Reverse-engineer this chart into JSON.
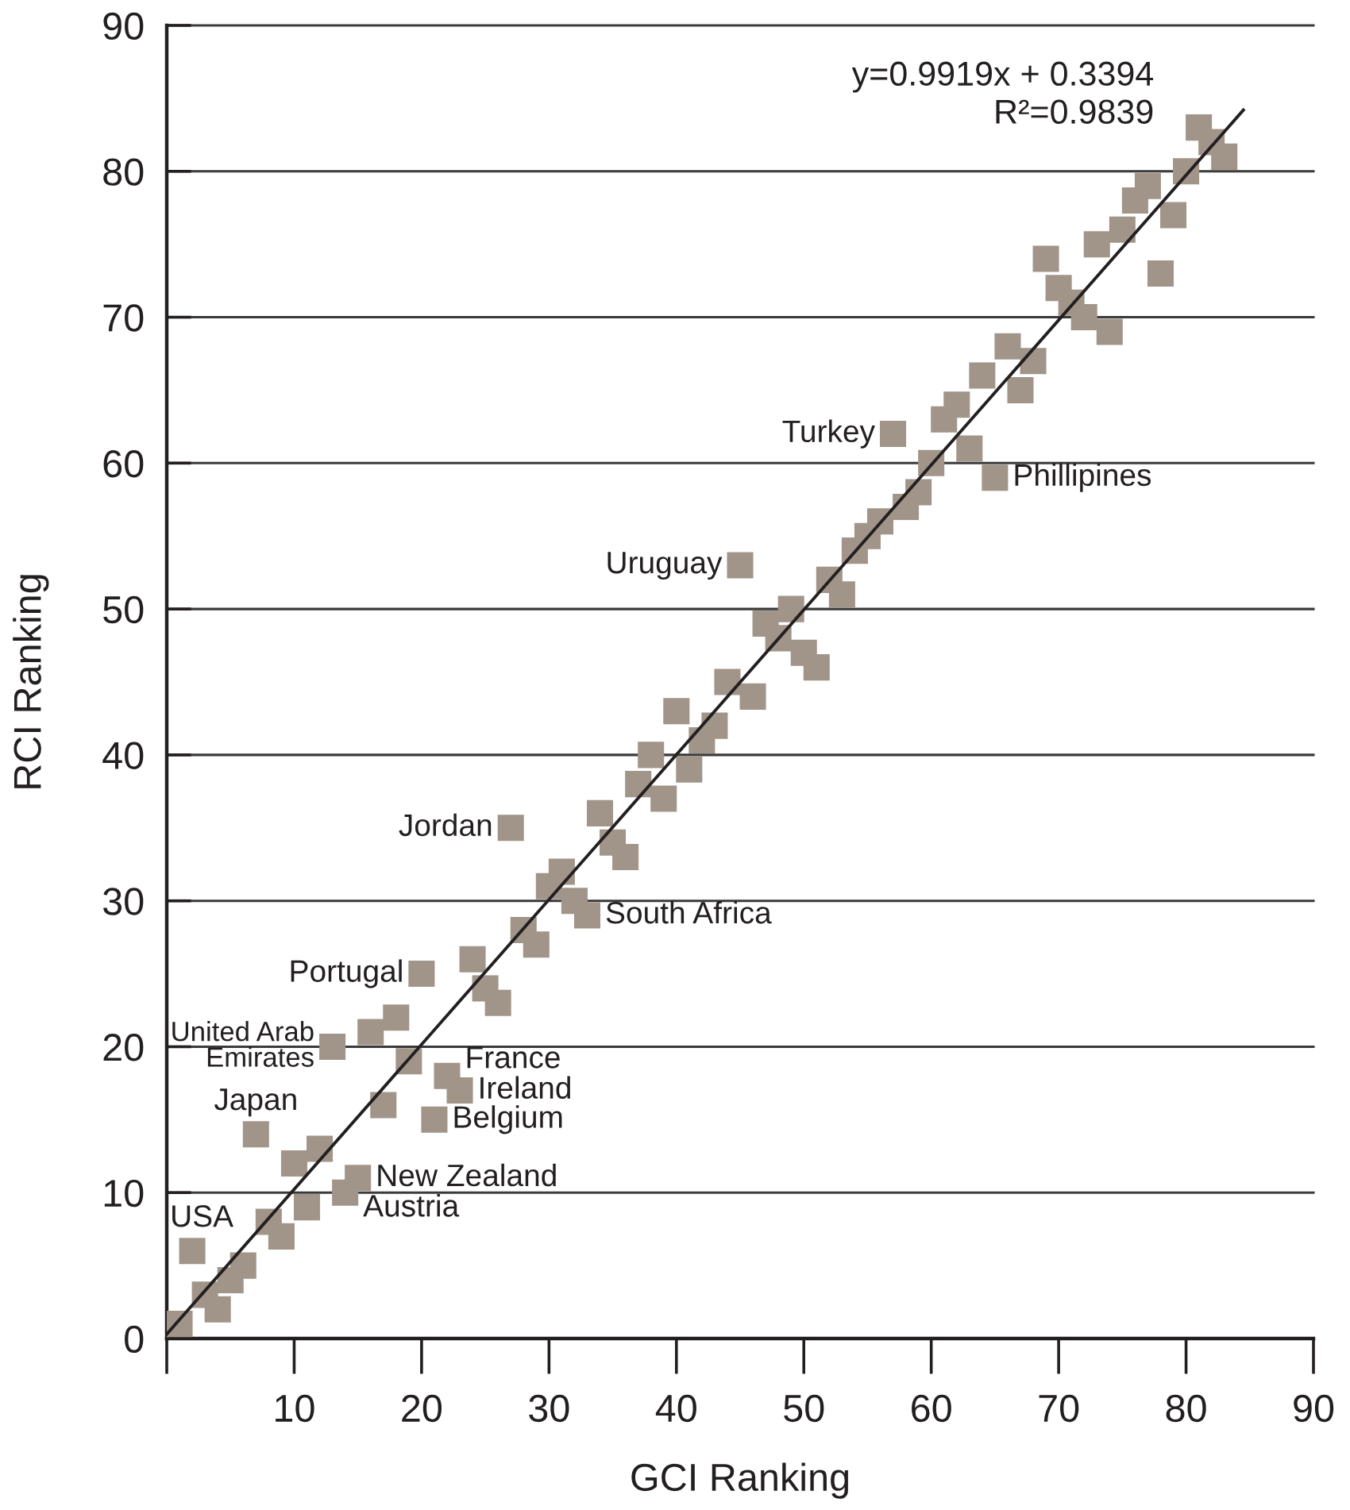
{
  "chart_data": {
    "type": "scatter",
    "xlabel": "GCI Ranking",
    "ylabel": "RCI Ranking",
    "xlim": [
      0,
      90
    ],
    "ylim": [
      0,
      90
    ],
    "xticks": [
      {
        "value": 0,
        "label": null
      },
      10,
      20,
      30,
      40,
      50,
      60,
      70,
      80,
      90
    ],
    "yticks": [
      0,
      10,
      20,
      30,
      40,
      50,
      60,
      70,
      80,
      90
    ],
    "grid": "y",
    "marker": "square",
    "series": [
      {
        "color": "#a19589",
        "x": [
          1,
          2,
          3,
          4,
          5,
          6,
          7,
          8,
          9,
          10,
          11,
          12,
          13,
          14,
          15,
          16,
          17,
          18,
          19,
          20,
          21,
          22,
          23,
          24,
          25,
          26,
          27,
          28,
          29,
          30,
          31,
          32,
          33,
          34,
          35,
          36,
          37,
          38,
          39,
          40,
          41,
          42,
          43,
          44,
          45,
          46,
          47,
          48,
          49,
          50,
          51,
          52,
          53,
          54,
          55,
          56,
          57,
          58,
          59,
          60,
          61,
          62,
          63,
          64,
          65,
          66,
          67,
          68,
          69,
          70,
          71,
          72,
          73,
          74,
          75,
          76,
          77,
          78,
          79,
          80,
          81,
          82,
          83
        ],
        "values": [
          1,
          6,
          3,
          2,
          4,
          5,
          14,
          8,
          7,
          12,
          9,
          13,
          20,
          10,
          11,
          21,
          16,
          22,
          19,
          25,
          15,
          18,
          17,
          26,
          24,
          23,
          35,
          28,
          27,
          31,
          32,
          30,
          29,
          36,
          34,
          33,
          38,
          40,
          37,
          43,
          39,
          41,
          42,
          45,
          53,
          44,
          49,
          48,
          50,
          47,
          46,
          52,
          51,
          54,
          55,
          56,
          62,
          57,
          58,
          60,
          63,
          64,
          61,
          66,
          59,
          68,
          65,
          67,
          74,
          72,
          71,
          70,
          75,
          69,
          76,
          78,
          79,
          73,
          77,
          80,
          83,
          82,
          81
        ]
      },
      {
        "type": "line",
        "color": "#231f20",
        "marker": "none",
        "line_style": "solid",
        "x": [
          0,
          84.5
        ],
        "values": [
          0.3,
          84.2
        ]
      }
    ],
    "annotations": [
      "y=0.9919x + 0.3394",
      "R²=0.9839",
      {
        "text": "Turkey",
        "x": 57,
        "y": 62
      },
      {
        "text": "Phillipines",
        "x": 65,
        "y": 59
      },
      {
        "text": "Uruguay",
        "x": 45,
        "y": 53
      },
      {
        "text": "Jordan",
        "x": 27,
        "y": 35
      },
      {
        "text": "South Africa",
        "x": 33,
        "y": 29
      },
      {
        "text": "Portugal",
        "x": 20,
        "y": 25
      },
      {
        "text": "United Arab\nEmirates",
        "x": 13,
        "y": 20
      },
      {
        "text": "France",
        "x": 22,
        "y": 18
      },
      {
        "text": "Ireland",
        "x": 23,
        "y": 17
      },
      {
        "text": "Japan",
        "x": 7,
        "y": 14
      },
      {
        "text": "Belgium",
        "x": 21,
        "y": 15
      },
      {
        "text": "New Zealand",
        "x": 15,
        "y": 11
      },
      {
        "text": "Austria",
        "x": 14,
        "y": 10
      },
      {
        "text": "USA",
        "x": 2,
        "y": 6
      }
    ]
  }
}
